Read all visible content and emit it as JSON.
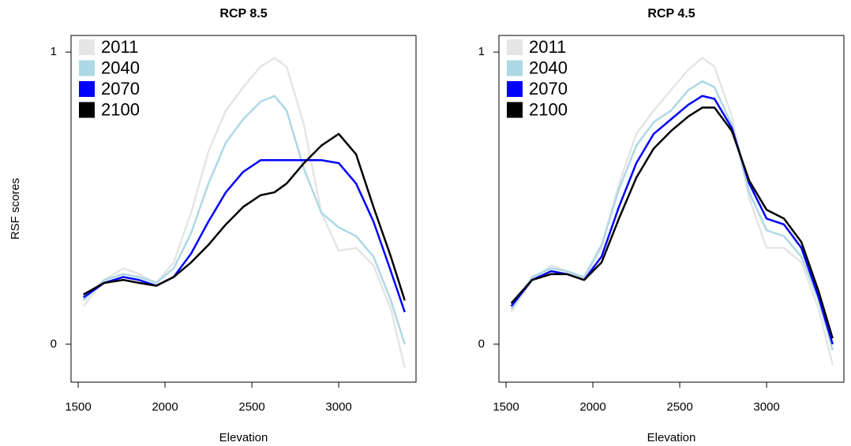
{
  "chart_data": [
    {
      "type": "line",
      "title": "RCP 8.5",
      "x_label": "Elevation",
      "y_label": "RSF scores",
      "x": [
        1530,
        1650,
        1760,
        1850,
        1950,
        2050,
        2150,
        2250,
        2350,
        2450,
        2550,
        2630,
        2700,
        2800,
        2900,
        3000,
        3100,
        3200,
        3300,
        3380
      ],
      "series": [
        {
          "name": "2011",
          "color": "#e5e5e5",
          "values": [
            0.13,
            0.22,
            0.26,
            0.24,
            0.21,
            0.28,
            0.45,
            0.66,
            0.8,
            0.88,
            0.95,
            0.98,
            0.95,
            0.75,
            0.45,
            0.32,
            0.33,
            0.27,
            0.12,
            -0.08
          ]
        },
        {
          "name": "2040",
          "color": "#add8e6",
          "values": [
            0.15,
            0.22,
            0.24,
            0.23,
            0.21,
            0.26,
            0.38,
            0.55,
            0.69,
            0.77,
            0.83,
            0.85,
            0.8,
            0.6,
            0.45,
            0.4,
            0.37,
            0.3,
            0.15,
            0.0
          ]
        },
        {
          "name": "2070",
          "color": "#0000ff",
          "values": [
            0.16,
            0.21,
            0.23,
            0.22,
            0.2,
            0.23,
            0.31,
            0.42,
            0.52,
            0.59,
            0.63,
            0.63,
            0.63,
            0.63,
            0.63,
            0.62,
            0.55,
            0.42,
            0.25,
            0.11
          ]
        },
        {
          "name": "2100",
          "color": "#000000",
          "values": [
            0.17,
            0.21,
            0.22,
            0.21,
            0.2,
            0.23,
            0.28,
            0.34,
            0.41,
            0.47,
            0.51,
            0.52,
            0.55,
            0.62,
            0.68,
            0.72,
            0.65,
            0.47,
            0.3,
            0.15
          ]
        }
      ],
      "xlim": [
        1459,
        3445
      ],
      "xticks": [
        1500,
        2000,
        2500,
        3000
      ],
      "ylim": [
        -0.13,
        1.057
      ],
      "yticks": [
        0,
        1
      ],
      "legend": "top-left",
      "grid": false
    },
    {
      "type": "line",
      "title": "RCP 4.5",
      "x_label": "Elevation",
      "x": [
        1530,
        1650,
        1760,
        1850,
        1950,
        2050,
        2150,
        2250,
        2350,
        2450,
        2550,
        2630,
        2700,
        2800,
        2900,
        3000,
        3100,
        3200,
        3300,
        3380
      ],
      "series": [
        {
          "name": "2011",
          "color": "#e5e5e5",
          "values": [
            0.11,
            0.22,
            0.27,
            0.25,
            0.22,
            0.33,
            0.55,
            0.72,
            0.8,
            0.87,
            0.94,
            0.98,
            0.95,
            0.78,
            0.5,
            0.33,
            0.33,
            0.28,
            0.12,
            -0.07
          ]
        },
        {
          "name": "2040",
          "color": "#add8e6",
          "values": [
            0.12,
            0.23,
            0.26,
            0.25,
            0.23,
            0.34,
            0.53,
            0.68,
            0.76,
            0.8,
            0.87,
            0.9,
            0.88,
            0.75,
            0.52,
            0.39,
            0.37,
            0.3,
            0.15,
            -0.02
          ]
        },
        {
          "name": "2070",
          "color": "#0000ff",
          "values": [
            0.13,
            0.22,
            0.25,
            0.24,
            0.22,
            0.3,
            0.47,
            0.62,
            0.72,
            0.77,
            0.82,
            0.85,
            0.84,
            0.74,
            0.55,
            0.43,
            0.41,
            0.33,
            0.16,
            0.0
          ]
        },
        {
          "name": "2100",
          "color": "#000000",
          "values": [
            0.14,
            0.22,
            0.24,
            0.24,
            0.22,
            0.28,
            0.43,
            0.57,
            0.67,
            0.73,
            0.78,
            0.81,
            0.81,
            0.73,
            0.56,
            0.46,
            0.43,
            0.35,
            0.18,
            0.02
          ]
        }
      ],
      "xlim": [
        1459,
        3445
      ],
      "xticks": [
        1500,
        2000,
        2500,
        3000
      ],
      "ylim": [
        -0.13,
        1.057
      ],
      "yticks": [
        0,
        1
      ],
      "legend": "top-left",
      "grid": false
    }
  ]
}
